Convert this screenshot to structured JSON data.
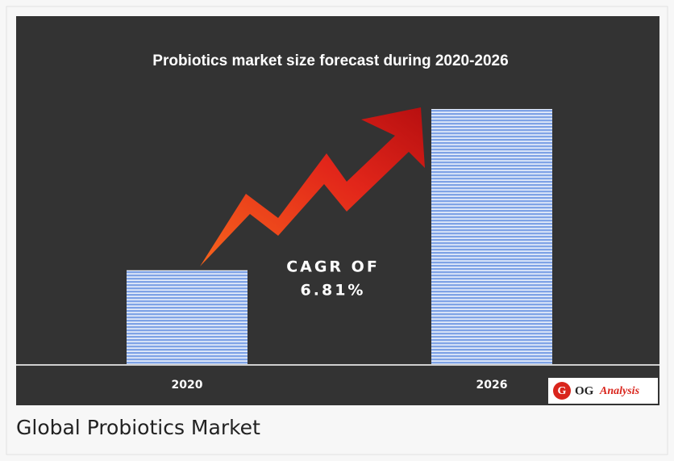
{
  "chart_data": {
    "type": "bar",
    "title": "Probiotics market size forecast during 2020-2026",
    "categories": [
      "2020",
      "2026"
    ],
    "values": [
      37,
      100
    ],
    "color": "#8fb0ec",
    "annotation_lines": [
      "CAGR OF",
      "6.81%"
    ],
    "logo": {
      "icon": "G",
      "name": "OG",
      "suffix": "Analysis"
    },
    "caption": "Global Probiotics Market"
  }
}
